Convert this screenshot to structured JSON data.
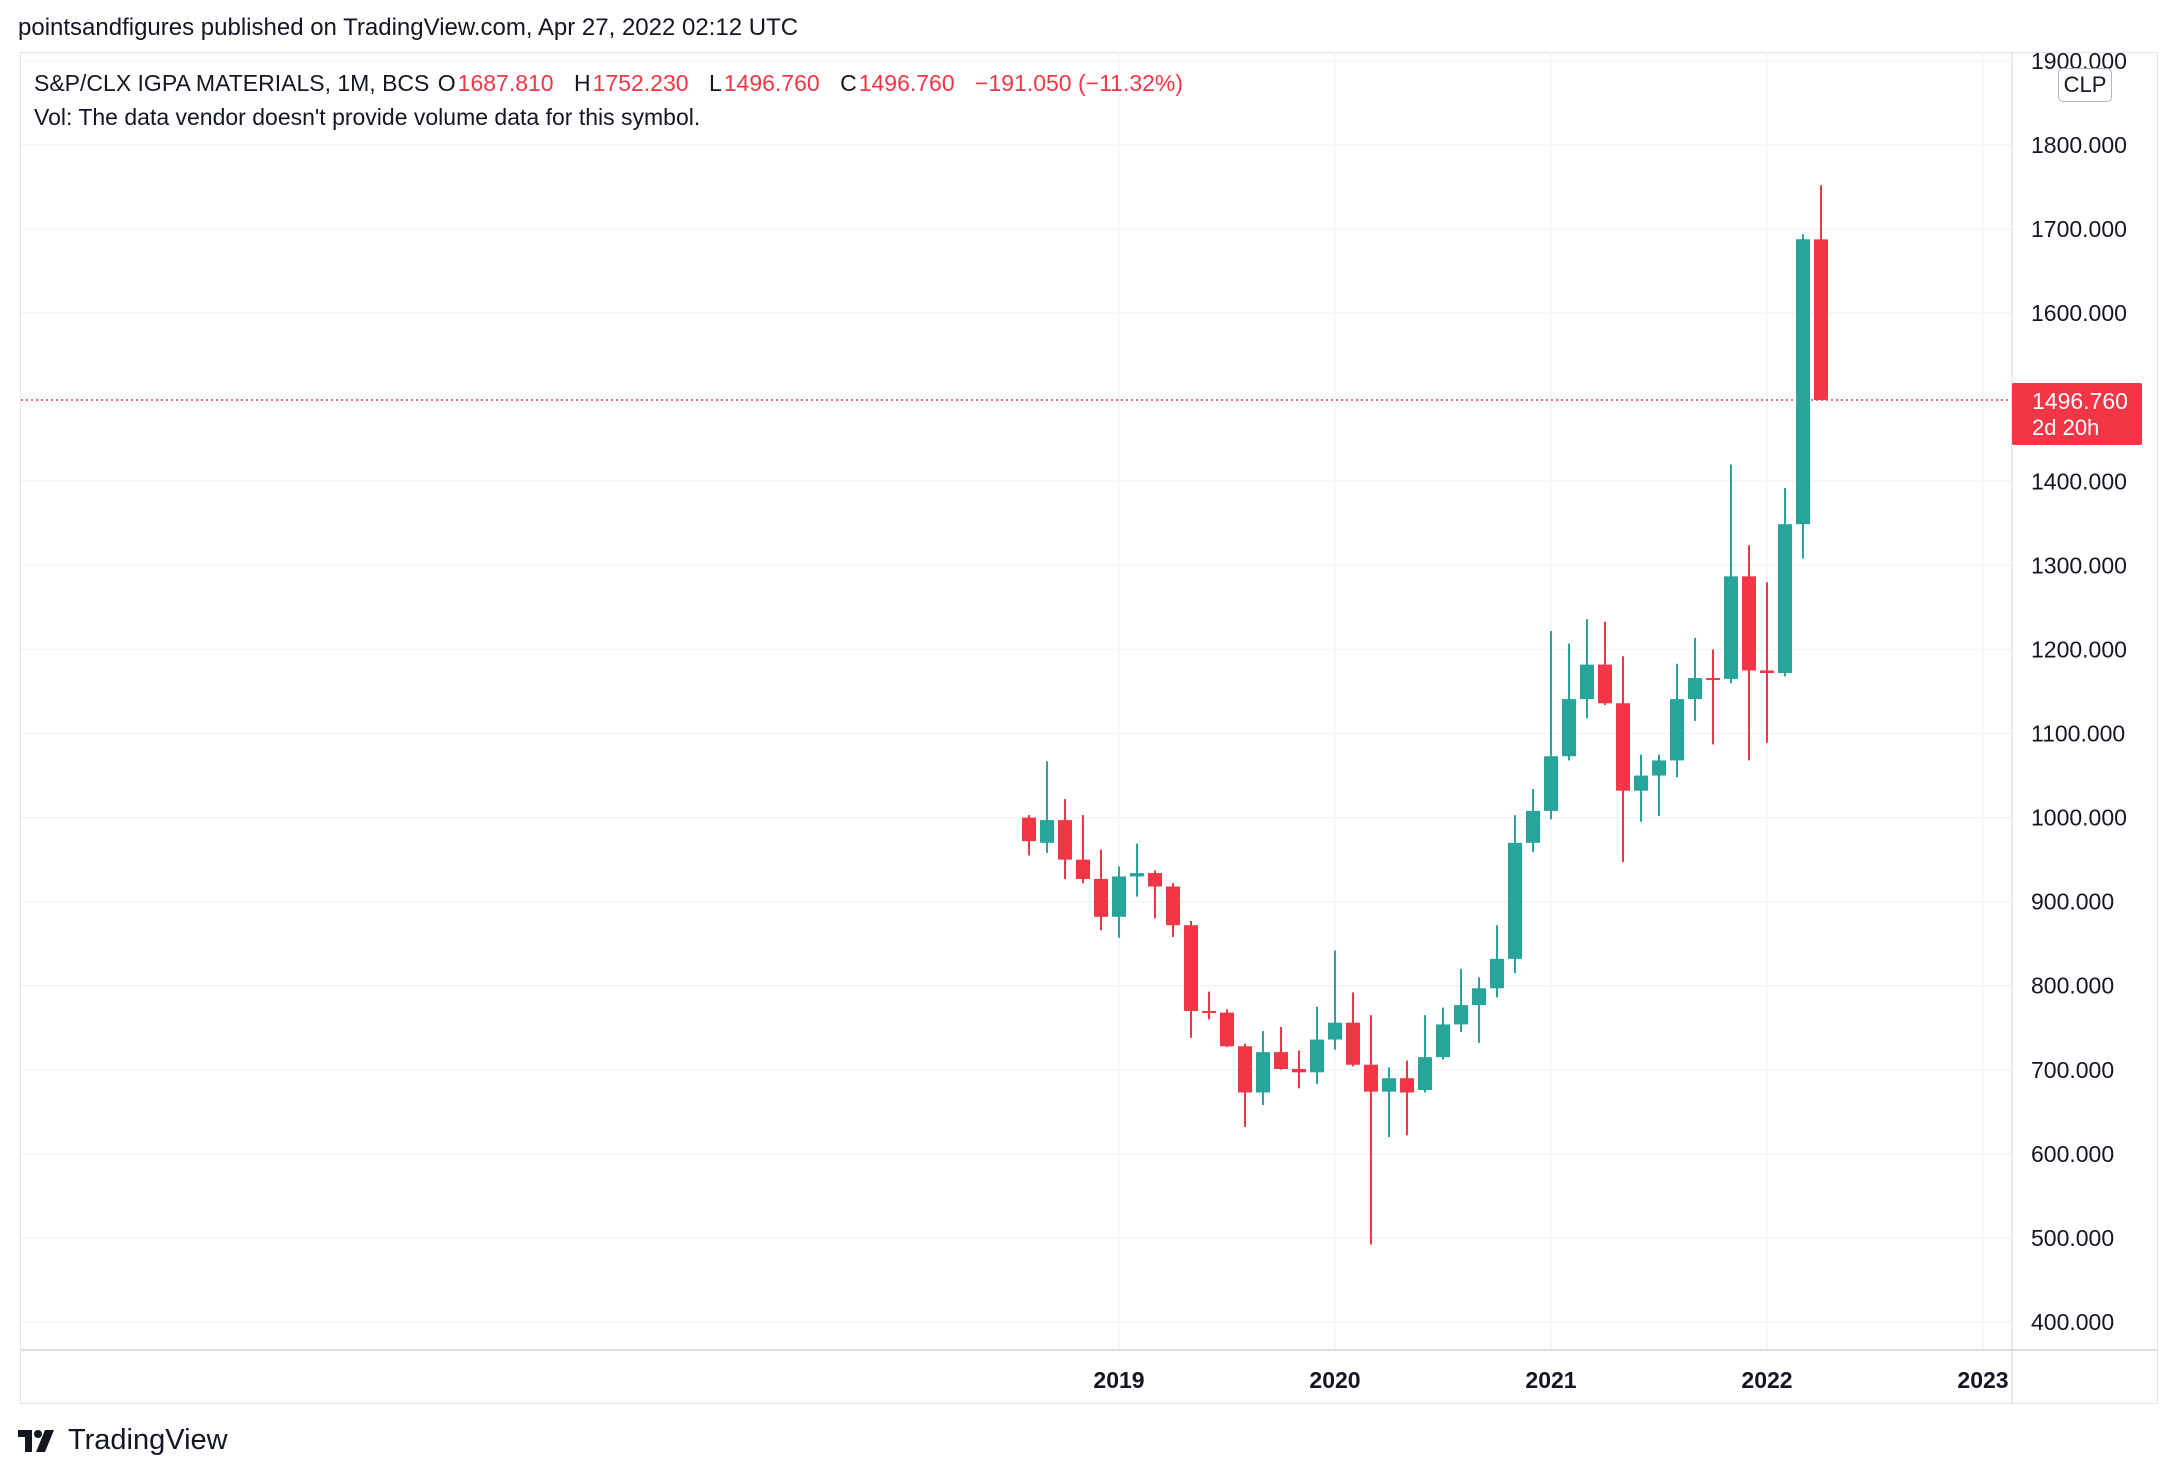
{
  "publish_line": "pointsandfigures published on TradingView.com, Apr 27, 2022 02:12 UTC",
  "header": {
    "symbol": "S&P/CLX IGPA MATERIALS, 1M, BCS",
    "o_label": "O",
    "o_value": "1687.810",
    "h_label": "H",
    "h_value": "1752.230",
    "l_label": "L",
    "l_value": "1496.760",
    "c_label": "C",
    "c_value": "1496.760",
    "change": "−191.050 (−11.32%)"
  },
  "volume_note": "Vol: The data vendor doesn't provide volume data for this symbol.",
  "currency": "CLP",
  "last_price": {
    "value": "1496.760",
    "countdown": "2d 20h"
  },
  "logo_text": "TradingView",
  "colors": {
    "up": "#26a69a",
    "down": "#f23645",
    "grid": "#f0f3fa",
    "text": "#131722"
  },
  "chart_data": {
    "type": "candlestick",
    "interval": "1M",
    "y_ticks": [
      "1900.000",
      "1800.000",
      "1700.000",
      "1600.000",
      "1400.000",
      "1300.000",
      "1200.000",
      "1100.000",
      "1000.000",
      "900.000",
      "800.000",
      "700.000",
      "600.000",
      "500.000",
      "400.000"
    ],
    "y_tick_values": [
      1900,
      1800,
      1700,
      1600,
      1400,
      1300,
      1200,
      1100,
      1000,
      900,
      800,
      700,
      600,
      500,
      400
    ],
    "x_ticks": [
      "2019",
      "2020",
      "2021",
      "2022",
      "2023"
    ],
    "ylim": [
      355,
      1920
    ],
    "xlim": [
      "2014-03",
      "2023-06"
    ],
    "last_price_line": 1496.76,
    "grid": true,
    "candles": [
      {
        "t": "2018-08",
        "o": 1000,
        "h": 1003,
        "l": 955,
        "c": 972
      },
      {
        "t": "2018-09",
        "o": 970,
        "h": 1067,
        "l": 958,
        "c": 997
      },
      {
        "t": "2018-10",
        "o": 997,
        "h": 1022,
        "l": 927,
        "c": 950
      },
      {
        "t": "2018-11",
        "o": 950,
        "h": 1003,
        "l": 922,
        "c": 927
      },
      {
        "t": "2018-12",
        "o": 927,
        "h": 962,
        "l": 866,
        "c": 882
      },
      {
        "t": "2019-01",
        "o": 882,
        "h": 942,
        "l": 857,
        "c": 930
      },
      {
        "t": "2019-02",
        "o": 930,
        "h": 969,
        "l": 906,
        "c": 934
      },
      {
        "t": "2019-03",
        "o": 934,
        "h": 937,
        "l": 880,
        "c": 918
      },
      {
        "t": "2019-04",
        "o": 918,
        "h": 922,
        "l": 858,
        "c": 872
      },
      {
        "t": "2019-05",
        "o": 872,
        "h": 877,
        "l": 738,
        "c": 770
      },
      {
        "t": "2019-06",
        "o": 770,
        "h": 793,
        "l": 760,
        "c": 768
      },
      {
        "t": "2019-07",
        "o": 768,
        "h": 772,
        "l": 727,
        "c": 728
      },
      {
        "t": "2019-08",
        "o": 728,
        "h": 731,
        "l": 632,
        "c": 673
      },
      {
        "t": "2019-09",
        "o": 673,
        "h": 746,
        "l": 658,
        "c": 721
      },
      {
        "t": "2019-10",
        "o": 721,
        "h": 751,
        "l": 700,
        "c": 701
      },
      {
        "t": "2019-11",
        "o": 701,
        "h": 723,
        "l": 678,
        "c": 697
      },
      {
        "t": "2019-12",
        "o": 697,
        "h": 775,
        "l": 683,
        "c": 736
      },
      {
        "t": "2020-01",
        "o": 736,
        "h": 842,
        "l": 724,
        "c": 756
      },
      {
        "t": "2020-02",
        "o": 756,
        "h": 792,
        "l": 704,
        "c": 706
      },
      {
        "t": "2020-03",
        "o": 706,
        "h": 765,
        "l": 492,
        "c": 674
      },
      {
        "t": "2020-04",
        "o": 674,
        "h": 703,
        "l": 620,
        "c": 690
      },
      {
        "t": "2020-05",
        "o": 690,
        "h": 711,
        "l": 622,
        "c": 673
      },
      {
        "t": "2020-06",
        "o": 676,
        "h": 765,
        "l": 673,
        "c": 715
      },
      {
        "t": "2020-07",
        "o": 715,
        "h": 774,
        "l": 712,
        "c": 754
      },
      {
        "t": "2020-08",
        "o": 754,
        "h": 820,
        "l": 745,
        "c": 777
      },
      {
        "t": "2020-09",
        "o": 777,
        "h": 810,
        "l": 732,
        "c": 797
      },
      {
        "t": "2020-10",
        "o": 797,
        "h": 872,
        "l": 786,
        "c": 832
      },
      {
        "t": "2020-11",
        "o": 832,
        "h": 1003,
        "l": 815,
        "c": 970
      },
      {
        "t": "2020-12",
        "o": 970,
        "h": 1034,
        "l": 959,
        "c": 1008
      },
      {
        "t": "2021-01",
        "o": 1008,
        "h": 1222,
        "l": 998,
        "c": 1073
      },
      {
        "t": "2021-02",
        "o": 1073,
        "h": 1207,
        "l": 1068,
        "c": 1141
      },
      {
        "t": "2021-03",
        "o": 1141,
        "h": 1236,
        "l": 1118,
        "c": 1182
      },
      {
        "t": "2021-04",
        "o": 1182,
        "h": 1233,
        "l": 1134,
        "c": 1136
      },
      {
        "t": "2021-05",
        "o": 1136,
        "h": 1192,
        "l": 947,
        "c": 1032
      },
      {
        "t": "2021-06",
        "o": 1032,
        "h": 1075,
        "l": 995,
        "c": 1050
      },
      {
        "t": "2021-07",
        "o": 1050,
        "h": 1075,
        "l": 1002,
        "c": 1068
      },
      {
        "t": "2021-08",
        "o": 1068,
        "h": 1183,
        "l": 1048,
        "c": 1141
      },
      {
        "t": "2021-09",
        "o": 1141,
        "h": 1214,
        "l": 1115,
        "c": 1166
      },
      {
        "t": "2021-10",
        "o": 1166,
        "h": 1200,
        "l": 1087,
        "c": 1165
      },
      {
        "t": "2021-11",
        "o": 1165,
        "h": 1420,
        "l": 1160,
        "c": 1287
      },
      {
        "t": "2021-12",
        "o": 1287,
        "h": 1324,
        "l": 1068,
        "c": 1175
      },
      {
        "t": "2022-01",
        "o": 1175,
        "h": 1280,
        "l": 1089,
        "c": 1172
      },
      {
        "t": "2022-02",
        "o": 1172,
        "h": 1392,
        "l": 1168,
        "c": 1349
      },
      {
        "t": "2022-03",
        "o": 1349,
        "h": 1694,
        "l": 1308,
        "c": 1688
      },
      {
        "t": "2022-04",
        "o": 1687.81,
        "h": 1752.23,
        "l": 1496.76,
        "c": 1496.76
      }
    ]
  }
}
